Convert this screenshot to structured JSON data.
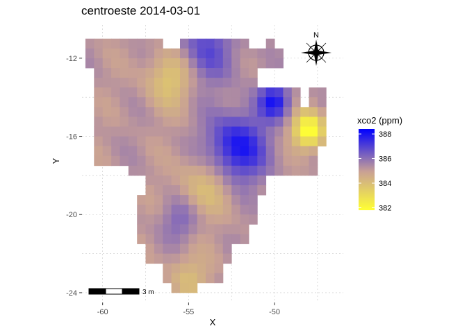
{
  "chart_data": {
    "type": "heatmap",
    "title": "centroeste 2014-03-01",
    "xlabel": "X",
    "ylabel": "Y",
    "xlim": [
      -61.2,
      -46
    ],
    "ylim": [
      -24.5,
      -10.3
    ],
    "xticks": [
      -60,
      -55,
      -50
    ],
    "yticks": [
      -12,
      -16,
      -20,
      -24
    ],
    "cell_size_deg": 0.5,
    "grid": true,
    "legend": {
      "title": "xco2 (ppm)",
      "position": "right",
      "ticks": [
        388,
        386,
        384,
        382
      ],
      "range": [
        381.8,
        388.4
      ],
      "colors": [
        "#ffff33",
        "#c8a095",
        "#0000ff"
      ]
    },
    "scale_bar": {
      "label": "3 m"
    },
    "north_arrow": {
      "label": "N"
    },
    "hotspots": [
      {
        "x": -52.2,
        "y": -16.6,
        "value": 388.1,
        "note": "high"
      },
      {
        "x": -50.0,
        "y": -14.2,
        "value": 388.3,
        "note": "high"
      },
      {
        "x": -48.0,
        "y": -15.7,
        "value": 381.8,
        "note": "low"
      },
      {
        "x": -56.0,
        "y": -13.0,
        "value": 383.5,
        "note": "low"
      }
    ]
  }
}
